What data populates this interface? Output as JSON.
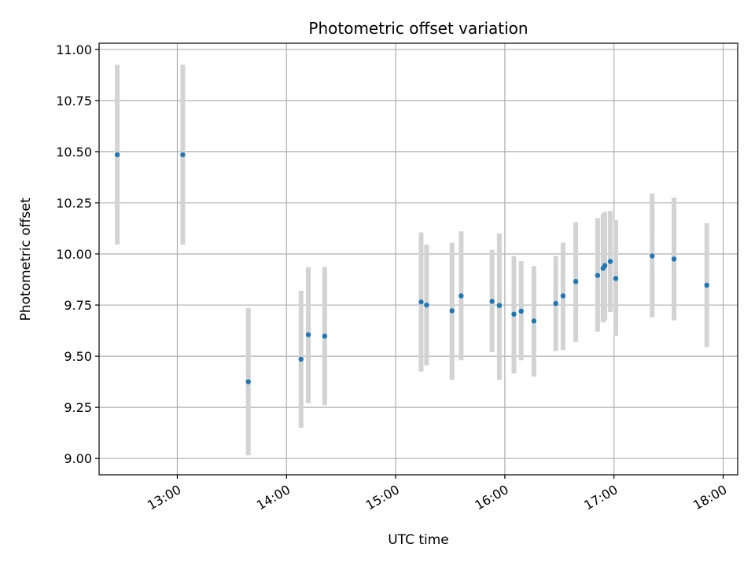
{
  "chart_data": {
    "type": "scatter",
    "title": "Photometric offset variation",
    "xlabel": "UTC time",
    "ylabel": "Photometric offset",
    "x_format": "time HH:MM",
    "xlim": [
      "12:17",
      "18:08"
    ],
    "ylim": [
      8.92,
      11.03
    ],
    "grid": true,
    "x_ticks": [
      "13:00",
      "14:00",
      "15:00",
      "16:00",
      "17:00",
      "18:00"
    ],
    "y_ticks": [
      "9.00",
      "9.25",
      "9.50",
      "9.75",
      "10.00",
      "10.25",
      "10.50",
      "10.75",
      "11.00"
    ],
    "point_color": "#1f77b4",
    "errorbar_color": "#d3d3d3",
    "points": [
      {
        "x": "12:27",
        "y": 10.485,
        "ylow": 10.045,
        "yhigh": 10.925
      },
      {
        "x": "13:03",
        "y": 10.485,
        "ylow": 10.045,
        "yhigh": 10.925
      },
      {
        "x": "13:39",
        "y": 9.375,
        "ylow": 9.015,
        "yhigh": 9.735
      },
      {
        "x": "14:08",
        "y": 9.485,
        "ylow": 9.15,
        "yhigh": 9.82
      },
      {
        "x": "14:12",
        "y": 9.605,
        "ylow": 9.27,
        "yhigh": 9.935
      },
      {
        "x": "14:21",
        "y": 9.598,
        "ylow": 9.26,
        "yhigh": 9.935
      },
      {
        "x": "15:14",
        "y": 9.765,
        "ylow": 9.425,
        "yhigh": 10.105
      },
      {
        "x": "15:17",
        "y": 9.75,
        "ylow": 9.455,
        "yhigh": 10.045
      },
      {
        "x": "15:31",
        "y": 9.722,
        "ylow": 9.385,
        "yhigh": 10.055
      },
      {
        "x": "15:36",
        "y": 9.795,
        "ylow": 9.48,
        "yhigh": 10.11
      },
      {
        "x": "15:53",
        "y": 9.768,
        "ylow": 9.52,
        "yhigh": 10.02
      },
      {
        "x": "15:57",
        "y": 9.748,
        "ylow": 9.385,
        "yhigh": 10.1
      },
      {
        "x": "16:05",
        "y": 9.705,
        "ylow": 9.415,
        "yhigh": 9.99
      },
      {
        "x": "16:09",
        "y": 9.72,
        "ylow": 9.48,
        "yhigh": 9.965
      },
      {
        "x": "16:16",
        "y": 9.672,
        "ylow": 9.4,
        "yhigh": 9.94
      },
      {
        "x": "16:28",
        "y": 9.758,
        "ylow": 9.525,
        "yhigh": 9.99
      },
      {
        "x": "16:32",
        "y": 9.795,
        "ylow": 9.53,
        "yhigh": 10.055
      },
      {
        "x": "16:39",
        "y": 9.865,
        "ylow": 9.57,
        "yhigh": 10.155
      },
      {
        "x": "16:51",
        "y": 9.895,
        "ylow": 9.62,
        "yhigh": 10.175
      },
      {
        "x": "16:54",
        "y": 9.93,
        "ylow": 9.665,
        "yhigh": 10.195
      },
      {
        "x": "16:55",
        "y": 9.943,
        "ylow": 9.675,
        "yhigh": 10.205
      },
      {
        "x": "16:58",
        "y": 9.963,
        "ylow": 9.715,
        "yhigh": 10.21
      },
      {
        "x": "17:01",
        "y": 9.88,
        "ylow": 9.6,
        "yhigh": 10.165
      },
      {
        "x": "17:21",
        "y": 9.99,
        "ylow": 9.69,
        "yhigh": 10.295
      },
      {
        "x": "17:33",
        "y": 9.975,
        "ylow": 9.675,
        "yhigh": 10.275
      },
      {
        "x": "17:51",
        "y": 9.847,
        "ylow": 9.545,
        "yhigh": 10.15
      }
    ]
  }
}
